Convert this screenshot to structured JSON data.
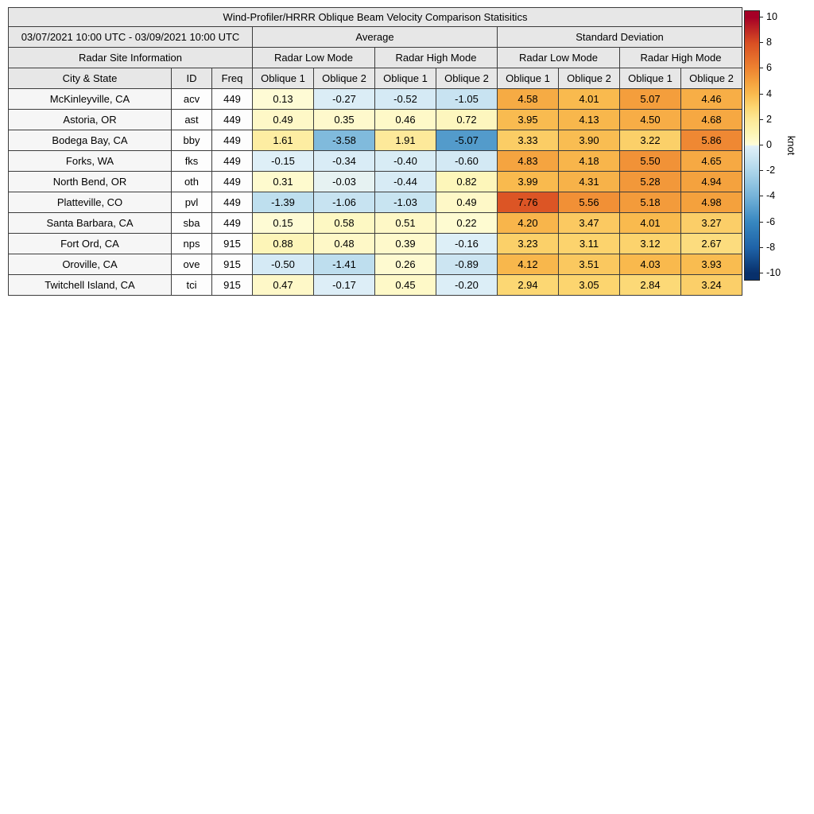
{
  "chart_data": {
    "type": "table",
    "title": "Wind-Profiler/HRRR Oblique Beam Velocity Comparison Statisitics",
    "date_range": "03/07/2021 10:00 UTC - 03/09/2021 10:00 UTC",
    "group_average": "Average",
    "group_std": "Standard Deviation",
    "site_info_header": "Radar Site Information",
    "low_mode_header": "Radar Low Mode",
    "high_mode_header": "Radar High Mode",
    "col_city": "City & State",
    "col_id": "ID",
    "col_freq": "Freq",
    "col_oblique1": "Oblique 1",
    "col_oblique2": "Oblique 2",
    "rows": [
      {
        "city": "McKinleyville, CA",
        "id": "acv",
        "freq": "449",
        "values": [
          "0.13",
          "-0.27",
          "-0.52",
          "-1.05",
          "4.58",
          "4.01",
          "5.07",
          "4.46"
        ]
      },
      {
        "city": "Astoria, OR",
        "id": "ast",
        "freq": "449",
        "values": [
          "0.49",
          "0.35",
          "0.46",
          "0.72",
          "3.95",
          "4.13",
          "4.50",
          "4.68"
        ]
      },
      {
        "city": "Bodega Bay, CA",
        "id": "bby",
        "freq": "449",
        "values": [
          "1.61",
          "-3.58",
          "1.91",
          "-5.07",
          "3.33",
          "3.90",
          "3.22",
          "5.86"
        ]
      },
      {
        "city": "Forks, WA",
        "id": "fks",
        "freq": "449",
        "values": [
          "-0.15",
          "-0.34",
          "-0.40",
          "-0.60",
          "4.83",
          "4.18",
          "5.50",
          "4.65"
        ]
      },
      {
        "city": "North Bend, OR",
        "id": "oth",
        "freq": "449",
        "values": [
          "0.31",
          "-0.03",
          "-0.44",
          "0.82",
          "3.99",
          "4.31",
          "5.28",
          "4.94"
        ]
      },
      {
        "city": "Platteville, CO",
        "id": "pvl",
        "freq": "449",
        "values": [
          "-1.39",
          "-1.06",
          "-1.03",
          "0.49",
          "7.76",
          "5.56",
          "5.18",
          "4.98"
        ]
      },
      {
        "city": "Santa Barbara, CA",
        "id": "sba",
        "freq": "449",
        "values": [
          "0.15",
          "0.58",
          "0.51",
          "0.22",
          "4.20",
          "3.47",
          "4.01",
          "3.27"
        ]
      },
      {
        "city": "Fort Ord, CA",
        "id": "nps",
        "freq": "915",
        "values": [
          "0.88",
          "0.48",
          "0.39",
          "-0.16",
          "3.23",
          "3.11",
          "3.12",
          "2.67"
        ]
      },
      {
        "city": "Oroville, CA",
        "id": "ove",
        "freq": "915",
        "values": [
          "-0.50",
          "-1.41",
          "0.26",
          "-0.89",
          "4.12",
          "3.51",
          "4.03",
          "3.93"
        ]
      },
      {
        "city": "Twitchell Island, CA",
        "id": "tci",
        "freq": "915",
        "values": [
          "0.47",
          "-0.17",
          "0.45",
          "-0.20",
          "2.94",
          "3.05",
          "2.84",
          "3.24"
        ]
      }
    ],
    "colorbar": {
      "label": "knot",
      "ticks": [
        "10",
        "8",
        "6",
        "4",
        "2",
        "0",
        "-2",
        "-4",
        "-6",
        "-8",
        "-10"
      ],
      "tick_values": [
        10,
        8,
        6,
        4,
        2,
        0,
        -2,
        -4,
        -6,
        -8,
        -10
      ],
      "domain": [
        -10.5,
        10.5
      ],
      "stops": [
        [
          -10,
          "#08306b"
        ],
        [
          -8,
          "#1f63a8"
        ],
        [
          -6,
          "#3787c0"
        ],
        [
          -4,
          "#74b2d8"
        ],
        [
          -2,
          "#add6ea"
        ],
        [
          -1,
          "#c9e4f1"
        ],
        [
          -0.05,
          "#e0f0f8"
        ],
        [
          0.05,
          "#fefcd8"
        ],
        [
          1,
          "#fdf4b3"
        ],
        [
          2,
          "#fde897"
        ],
        [
          3,
          "#fcd671"
        ],
        [
          4,
          "#f9ba4e"
        ],
        [
          5,
          "#f4a03d"
        ],
        [
          6,
          "#ee8431"
        ],
        [
          8,
          "#d94f23"
        ],
        [
          10,
          "#a50026"
        ]
      ]
    }
  }
}
